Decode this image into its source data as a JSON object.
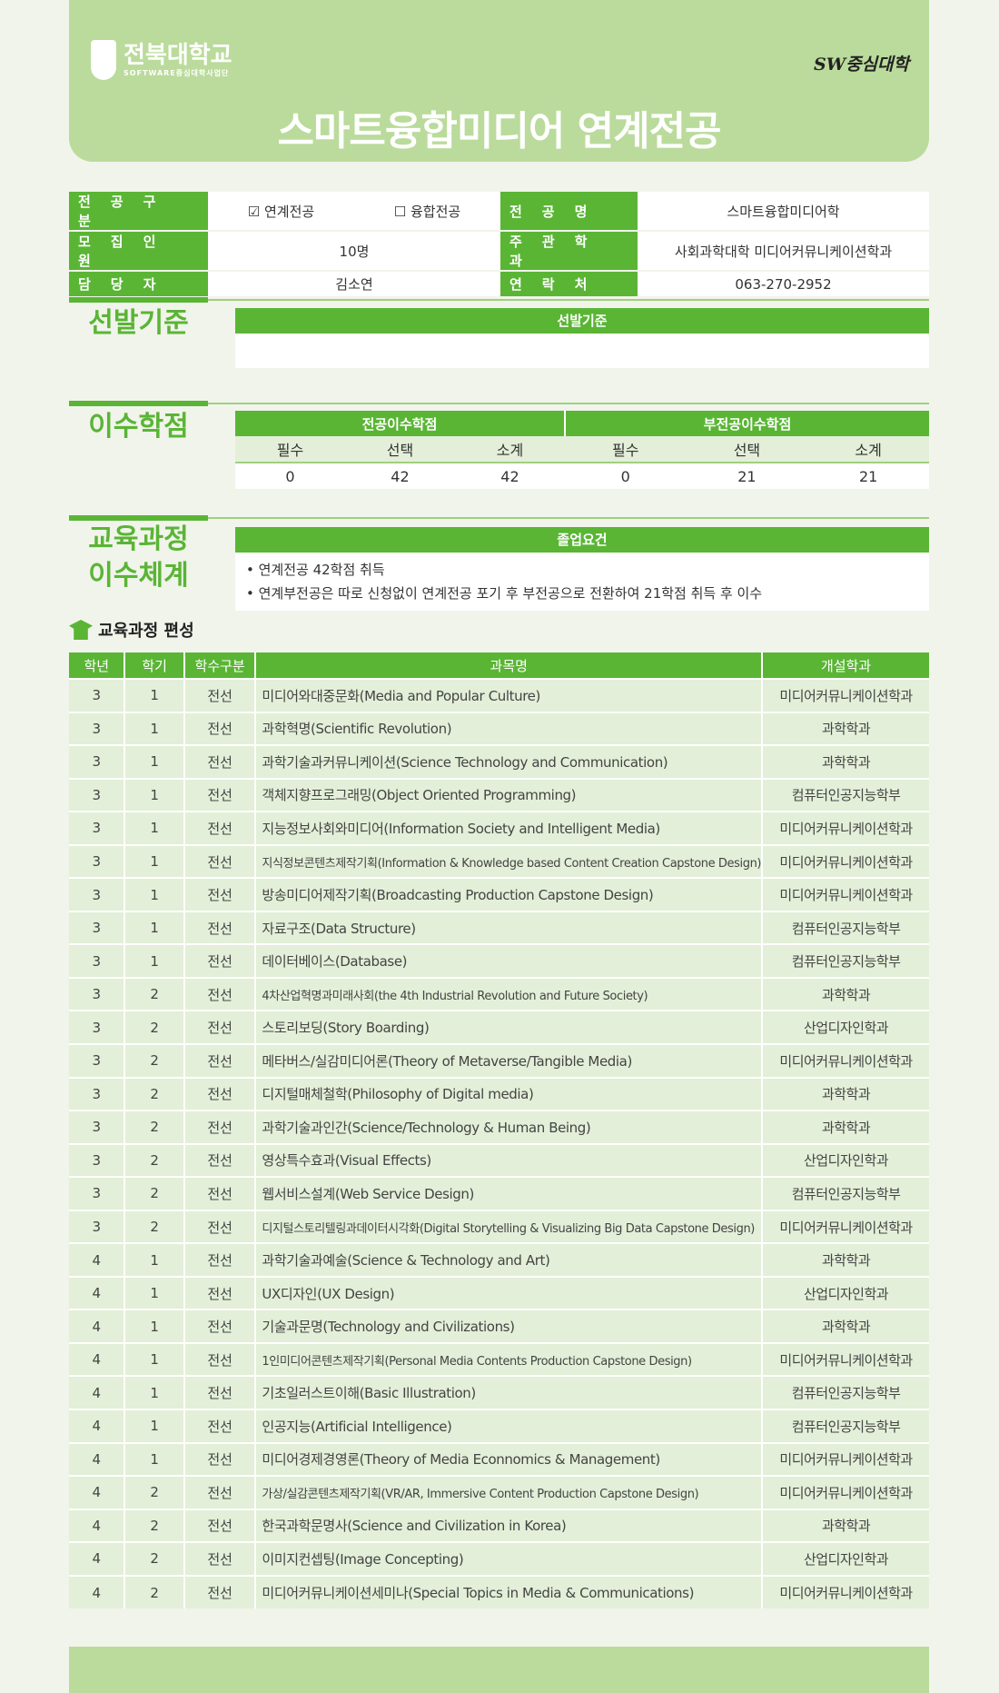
{
  "header": {
    "university": "전북대학교",
    "sub": "SOFTWARE중심대학사업단",
    "badge": "SW중심대학",
    "title": "스마트융합미디어 연계전공"
  },
  "info": {
    "type_label": "전공구분",
    "type_option1": "☑ 연계전공",
    "type_option2": "☐ 융합전공",
    "major_label": "전공명",
    "major_value": "스마트융합미디어학",
    "quota_label": "모집인원",
    "quota_value": "10명",
    "dept_label": "주관학과",
    "dept_value": "사회과학대학 미디어커뮤니케이션학과",
    "contact_label": "담당자",
    "contact_value": "김소연",
    "phone_label": "연락처",
    "phone_value": "063-270-2952"
  },
  "selection": {
    "title": "선발기준",
    "header": "선발기준"
  },
  "credits": {
    "title": "이수학점",
    "major_header": "전공이수학점",
    "minor_header": "부전공이수학점",
    "subheaders": [
      "필수",
      "선택",
      "소계",
      "필수",
      "선택",
      "소계"
    ],
    "values": [
      "0",
      "42",
      "42",
      "0",
      "21",
      "21"
    ]
  },
  "curriculum": {
    "title1": "교육과정",
    "title2": "이수체계",
    "header": "졸업요건",
    "requirements": [
      "• 연계전공 42학점 취득",
      "• 연계부전공은 따로 신청없이 연계전공 포기 후 부전공으로 전환하여 21학점 취득 후 이수"
    ]
  },
  "courses": {
    "title": "교육과정 편성",
    "columns": [
      "학년",
      "학기",
      "학수구분",
      "과목명",
      "개설학과"
    ],
    "rows": [
      [
        "3",
        "1",
        "전선",
        "미디어와대중문화(Media and Popular Culture)",
        "미디어커뮤니케이션학과"
      ],
      [
        "3",
        "1",
        "전선",
        "과학혁명(Scientific Revolution)",
        "과학학과"
      ],
      [
        "3",
        "1",
        "전선",
        "과학기술과커뮤니케이션(Science Technology and Communication)",
        "과학학과"
      ],
      [
        "3",
        "1",
        "전선",
        "객체지향프로그래밍(Object Oriented Programming)",
        "컴퓨터인공지능학부"
      ],
      [
        "3",
        "1",
        "전선",
        "지능정보사회와미디어(Information Society and Intelligent Media)",
        "미디어커뮤니케이션학과"
      ],
      [
        "3",
        "1",
        "전선",
        "지식정보콘텐츠제작기획(Information & Knowledge based Content Creation Capstone Design)",
        "미디어커뮤니케이션학과"
      ],
      [
        "3",
        "1",
        "전선",
        "방송미디어제작기획(Broadcasting Production Capstone Design)",
        "미디어커뮤니케이션학과"
      ],
      [
        "3",
        "1",
        "전선",
        "자료구조(Data Structure)",
        "컴퓨터인공지능학부"
      ],
      [
        "3",
        "1",
        "전선",
        "데이터베이스(Database)",
        "컴퓨터인공지능학부"
      ],
      [
        "3",
        "2",
        "전선",
        "4차산업혁명과미래사회(the 4th Industrial Revolution and Future Society)",
        "과학학과"
      ],
      [
        "3",
        "2",
        "전선",
        "스토리보딩(Story Boarding)",
        "산업디자인학과"
      ],
      [
        "3",
        "2",
        "전선",
        "메타버스/실감미디어론(Theory of Metaverse/Tangible Media)",
        "미디어커뮤니케이션학과"
      ],
      [
        "3",
        "2",
        "전선",
        "디지털매체철학(Philosophy of Digital media)",
        "과학학과"
      ],
      [
        "3",
        "2",
        "전선",
        "과학기술과인간(Science/Technology & Human Being)",
        "과학학과"
      ],
      [
        "3",
        "2",
        "전선",
        "영상특수효과(Visual Effects)",
        "산업디자인학과"
      ],
      [
        "3",
        "2",
        "전선",
        "웹서비스설계(Web Service Design)",
        "컴퓨터인공지능학부"
      ],
      [
        "3",
        "2",
        "전선",
        "디지털스토리텔링과데이터시각화(Digital Storytelling & Visualizing Big Data Capstone Design)",
        "미디어커뮤니케이션학과"
      ],
      [
        "4",
        "1",
        "전선",
        "과학기술과예술(Science & Technology and Art)",
        "과학학과"
      ],
      [
        "4",
        "1",
        "전선",
        "UX디자인(UX Design)",
        "산업디자인학과"
      ],
      [
        "4",
        "1",
        "전선",
        "기술과문명(Technology and Civilizations)",
        "과학학과"
      ],
      [
        "4",
        "1",
        "전선",
        "1인미디어콘텐츠제작기획(Personal Media Contents Production Capstone Design)",
        "미디어커뮤니케이션학과"
      ],
      [
        "4",
        "1",
        "전선",
        "기초일러스트이해(Basic Illustration)",
        "컴퓨터인공지능학부"
      ],
      [
        "4",
        "1",
        "전선",
        "인공지능(Artificial Intelligence)",
        "컴퓨터인공지능학부"
      ],
      [
        "4",
        "1",
        "전선",
        "미디어경제경영론(Theory of Media Econnomics & Management)",
        "미디어커뮤니케이션학과"
      ],
      [
        "4",
        "2",
        "전선",
        "가상/실감콘텐츠제작기획(VR/AR, Immersive Content Production Capstone Design)",
        "미디어커뮤니케이션학과"
      ],
      [
        "4",
        "2",
        "전선",
        "한국과학문명사(Science and Civilization in Korea)",
        "과학학과"
      ],
      [
        "4",
        "2",
        "전선",
        "이미지컨셉팅(Image Concepting)",
        "산업디자인학과"
      ],
      [
        "4",
        "2",
        "전선",
        "미디어커뮤니케이션세미나(Special Topics in Media & Communications)",
        "미디어커뮤니케이션학과"
      ]
    ]
  },
  "colors": {
    "green": "#5ab535",
    "light_green": "#badb9b",
    "row_bg": "#e3efd8",
    "page_bg": "#f1f4eb"
  }
}
